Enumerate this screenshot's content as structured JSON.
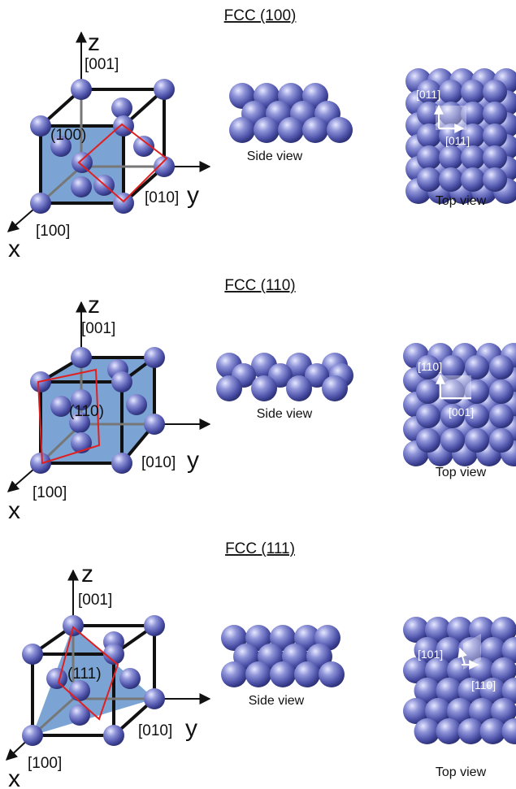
{
  "sections": [
    {
      "title": "FCC (100)",
      "plane_label": "(100)",
      "axes": {
        "z": "z",
        "z_dir": "[001]",
        "y": "y",
        "y_dir": "[010]",
        "x": "x",
        "x_dir": "[100]"
      },
      "side_caption": "Side view",
      "top_caption": "Top view",
      "top_dirs": [
        "[011]",
        "[011]"
      ]
    },
    {
      "title": "FCC (110)",
      "plane_label": "(110)",
      "axes": {
        "z": "z",
        "z_dir": "[001]",
        "y": "y",
        "y_dir": "[010]",
        "x": "x",
        "x_dir": "[100]"
      },
      "side_caption": "Side view",
      "top_caption": "Top view",
      "top_dirs": [
        "[110]",
        "[001]"
      ]
    },
    {
      "title": "FCC (111)",
      "plane_label": "(111)",
      "axes": {
        "z": "z",
        "z_dir": "[001]",
        "y": "y",
        "y_dir": "[010]",
        "x": "x",
        "x_dir": "[100]"
      },
      "side_caption": "Side view",
      "top_caption": "Top view",
      "top_dirs": [
        "[101]",
        "[110]"
      ]
    }
  ],
  "colors": {
    "atom": "#5a5fb8",
    "atom_highlight": "#c9ccf2",
    "plane_fill": "#4f86c6",
    "plane_outline": "#e02020",
    "cube_edge": "#111111"
  }
}
